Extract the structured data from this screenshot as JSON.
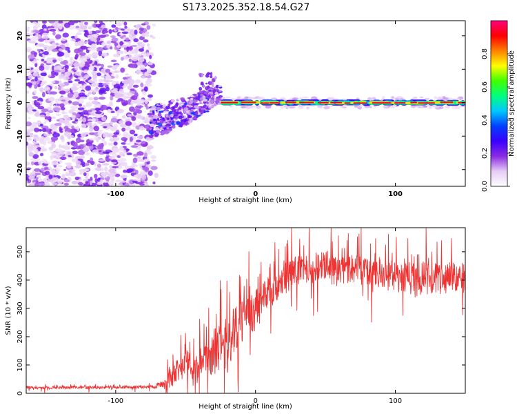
{
  "chart_data": [
    {
      "type": "heatmap",
      "title": "S173.2025.352.18.54.G27",
      "xlabel": "Height of straight line (km)",
      "ylabel": "Frequency (Hz)",
      "xlim": [
        -164,
        150
      ],
      "ylim": [
        -25,
        24.5
      ],
      "x_ticks": [
        -100,
        0,
        100
      ],
      "x_tick_labels": [
        "-100",
        "0",
        "100"
      ],
      "y_ticks": [
        -20,
        -10,
        0,
        10,
        20
      ],
      "y_tick_labels": [
        "-20",
        "-10",
        "0",
        "10",
        "20"
      ],
      "colorbar": {
        "label": "Normalized spectral amplitude",
        "range": [
          0,
          1
        ],
        "ticks": [
          0.0,
          0.2,
          0.4,
          0.6,
          0.8
        ],
        "tick_labels": [
          "0.0",
          "0.2",
          "0.4",
          "0.6",
          "0.8"
        ],
        "colors": [
          "#ffffff",
          "#e6ccf5",
          "#8a2be2",
          "#3a00ff",
          "#0040ff",
          "#00c8ff",
          "#00ff80",
          "#40ff00",
          "#ffff00",
          "#ff8000",
          "#ff0000",
          "#ff0080"
        ]
      },
      "regions": {
        "noise_x_range": [
          -164,
          -75
        ],
        "transition_x_range": [
          -75,
          -25
        ],
        "signal_x_range": [
          -25,
          150
        ],
        "signal_frequency_hz": 0
      }
    },
    {
      "type": "line",
      "xlabel": "Height of straight line (km)",
      "ylabel": "SNR (10 * v/v)",
      "xlim": [
        -164,
        150
      ],
      "ylim": [
        0,
        585
      ],
      "x_ticks": [
        -100,
        0,
        100
      ],
      "x_tick_labels": [
        "-100",
        "0",
        "100"
      ],
      "y_ticks": [
        0,
        100,
        200,
        300,
        400,
        500
      ],
      "y_tick_labels": [
        "0",
        "100",
        "200",
        "300",
        "400",
        "500"
      ],
      "series": [
        {
          "name": "SNR",
          "color": "#ee3333",
          "x": [
            -164,
            -150,
            -130,
            -110,
            -90,
            -75,
            -65,
            -60,
            -55,
            -50,
            -45,
            -40,
            -35,
            -30,
            -25,
            -20,
            -15,
            -10,
            -5,
            0,
            5,
            10,
            15,
            20,
            25,
            30,
            35,
            40,
            45,
            50,
            55,
            60,
            65,
            70,
            75,
            80,
            85,
            90,
            95,
            100,
            105,
            110,
            115,
            120,
            125,
            130,
            135,
            140,
            145,
            150
          ],
          "values": [
            20,
            19,
            21,
            20,
            22,
            23,
            30,
            60,
            90,
            110,
            70,
            90,
            120,
            130,
            170,
            160,
            230,
            250,
            280,
            290,
            330,
            360,
            380,
            400,
            420,
            430,
            430,
            440,
            450,
            450,
            440,
            430,
            430,
            440,
            430,
            420,
            410,
            420,
            410,
            420,
            400,
            410,
            390,
            410,
            400,
            410,
            400,
            410,
            400,
            410
          ],
          "amplitude": [
            6,
            6,
            6,
            6,
            6,
            6,
            20,
            50,
            60,
            70,
            60,
            70,
            80,
            90,
            100,
            100,
            100,
            100,
            100,
            100,
            80,
            80,
            80,
            70,
            70,
            70,
            70,
            70,
            70,
            70,
            70,
            70,
            70,
            70,
            70,
            70,
            70,
            70,
            70,
            70,
            70,
            70,
            70,
            70,
            70,
            70,
            70,
            70,
            70,
            70
          ]
        }
      ]
    }
  ]
}
